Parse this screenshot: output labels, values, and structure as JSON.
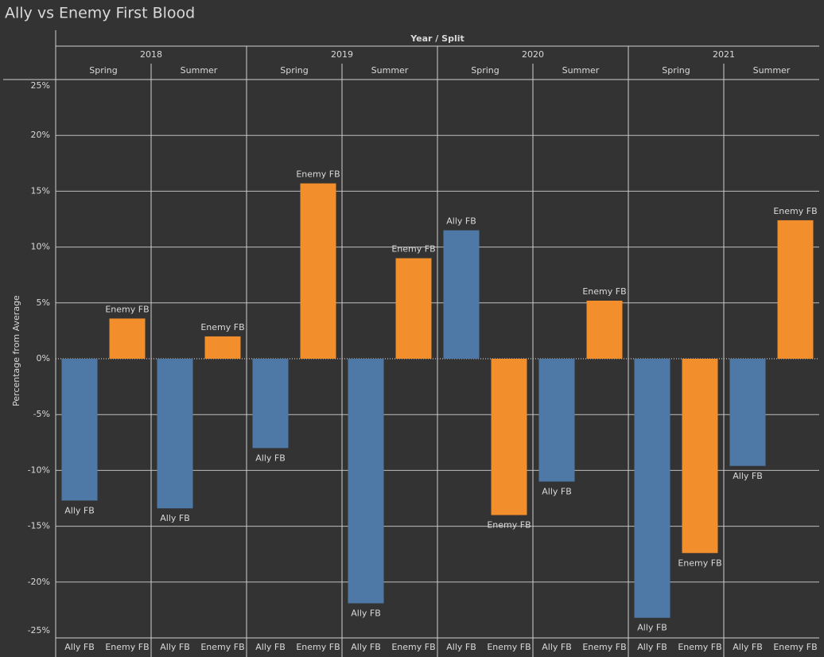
{
  "chart_data": {
    "type": "bar",
    "title": "Ally vs Enemy First Blood",
    "x_label": "Year / Split",
    "y_label": "Percentage from Average",
    "years": [
      "2018",
      "2019",
      "2020",
      "2021"
    ],
    "splits": [
      "Spring",
      "Summer"
    ],
    "series": [
      {
        "name": "Ally FB",
        "color": "#4e79a7",
        "values": [
          -12.7,
          -13.4,
          -8.0,
          -21.9,
          11.5,
          -11.0,
          -23.2,
          -9.6
        ]
      },
      {
        "name": "Enemy FB",
        "color": "#f28e2b",
        "values": [
          3.6,
          2.0,
          15.7,
          9.0,
          -14.0,
          5.2,
          -17.4,
          12.4
        ]
      }
    ],
    "ylim": [
      -25,
      25
    ],
    "yticks": [
      {
        "value": 25,
        "label": "25%"
      },
      {
        "value": 20,
        "label": "20%"
      },
      {
        "value": 15,
        "label": "15%"
      },
      {
        "value": 10,
        "label": "10%"
      },
      {
        "value": 5,
        "label": "5%"
      },
      {
        "value": 0,
        "label": "0%"
      },
      {
        "value": -5,
        "label": "-5%"
      },
      {
        "value": -10,
        "label": "-10%"
      },
      {
        "value": -15,
        "label": "-15%"
      },
      {
        "value": -20,
        "label": "-20%"
      },
      {
        "value": -25,
        "label": "-25%"
      }
    ],
    "grid": true
  }
}
